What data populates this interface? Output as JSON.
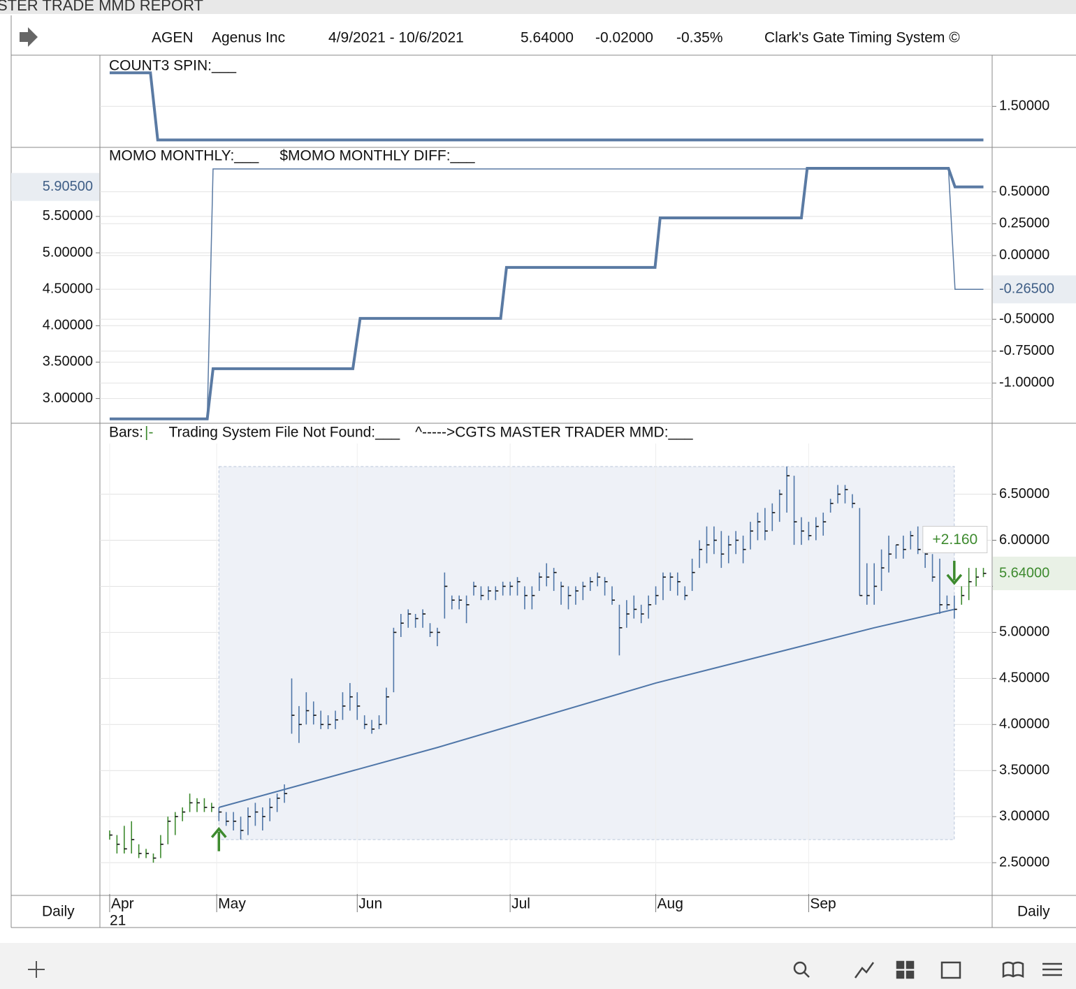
{
  "window_title": "STER TRADE MMD REPORT",
  "header": {
    "symbol": "AGEN",
    "company": "Agenus Inc",
    "date_range": "4/9/2021 - 10/6/2021",
    "last": "5.64000",
    "change": "-0.02000",
    "change_pct": "-0.35%",
    "system": "Clark's Gate Timing System ©"
  },
  "footer": {
    "left_period": "Daily",
    "right_period": "Daily"
  },
  "chart_data": [
    {
      "type": "line",
      "xlim": [
        -1.34,
        121.2
      ],
      "ylim": [
        0.9,
        2.2
      ],
      "yticks": [
        {
          "value": 1.5,
          "label": "1.50000"
        }
      ],
      "series": [
        {
          "name": "COUNT3 SPIN:___",
          "color": "#5a7aa3",
          "x": [
            0,
            5.6,
            6.6,
            120
          ],
          "values": [
            2,
            2,
            1,
            1
          ]
        }
      ]
    },
    {
      "type": "line",
      "xlim": [
        -1.34,
        121.2
      ],
      "ylim": [
        2.67,
        6.17
      ],
      "y2lim": [
        -1.31,
        0.69
      ],
      "yticks": [
        {
          "value": 3,
          "label": "3.00000"
        },
        {
          "value": 3.5,
          "label": "3.50000"
        },
        {
          "value": 4,
          "label": "4.00000"
        },
        {
          "value": 4.5,
          "label": "4.50000"
        },
        {
          "value": 5,
          "label": "5.00000"
        },
        {
          "value": 5.5,
          "label": "5.50000"
        }
      ],
      "y2ticks": [
        {
          "value": 0.5,
          "label": "0.50000"
        },
        {
          "value": 0.25,
          "label": "0.25000"
        },
        {
          "value": 0,
          "label": "0.00000"
        },
        {
          "value": -0.5,
          "label": "-0.50000"
        },
        {
          "value": -0.75,
          "label": "-0.75000"
        },
        {
          "value": -1,
          "label": "-1.00000"
        }
      ],
      "series": [
        {
          "name": "MOMO MONTHLY:___",
          "color": "#5a7aa3",
          "width": 4,
          "last_label": "5.90500",
          "x": [
            0,
            13.4,
            14.2,
            33.4,
            34.4,
            53.7,
            54.5,
            74.9,
            75.6,
            95,
            95.8,
            115.2,
            116.1,
            120
          ],
          "values": [
            2.72,
            2.72,
            3.41,
            3.41,
            4.1,
            4.1,
            4.8,
            4.8,
            5.48,
            5.48,
            6.16,
            6.16,
            5.905,
            5.905
          ]
        },
        {
          "name": "$MOMO MONTHLY DIFF:___",
          "color": "#5a7aa3",
          "width": 1.5,
          "axis": "y2",
          "last_label": "-0.26500",
          "x": [
            0,
            13.4,
            14.2,
            115.2,
            116.1,
            120
          ],
          "values": [
            -1.28,
            -1.28,
            0.68,
            0.68,
            -0.265,
            -0.265
          ]
        }
      ]
    },
    {
      "type": "ohlc",
      "xlim": [
        -1.34,
        121.2
      ],
      "ylim": [
        2.16,
        7.05
      ],
      "labels": [
        "Bars:",
        "|-",
        "Trading System File Not Found:___",
        "^----->CGTS MASTER TRADER MMD:___"
      ],
      "yticks": [
        {
          "value": 2.5,
          "label": "2.50000"
        },
        {
          "value": 3,
          "label": "3.00000"
        },
        {
          "value": 3.5,
          "label": "3.50000"
        },
        {
          "value": 4,
          "label": "4.00000"
        },
        {
          "value": 4.5,
          "label": "4.50000"
        },
        {
          "value": 5,
          "label": "5.00000"
        },
        {
          "value": 5.5,
          "label": "5.50000"
        },
        {
          "value": 6,
          "label": "6.00000"
        },
        {
          "value": 6.5,
          "label": "6.50000"
        }
      ],
      "xticks": [
        {
          "value": 0,
          "label": "Apr"
        },
        {
          "value": 14.7,
          "label": "May"
        },
        {
          "value": 34,
          "label": "Jun"
        },
        {
          "value": 55,
          "label": "Jul"
        },
        {
          "value": 75,
          "label": "Aug"
        },
        {
          "value": 96,
          "label": "Sep"
        }
      ],
      "year_label": "21",
      "color": "#4f76a8",
      "signal_color": "#3d8a2e",
      "last_label": "5.64000",
      "high": [
        2.85,
        2.8,
        2.9,
        2.95,
        2.7,
        2.65,
        2.6,
        2.8,
        3.0,
        3.05,
        3.1,
        3.25,
        3.2,
        3.2,
        3.15,
        3.1,
        3.05,
        3.05,
        3.0,
        3.1,
        3.15,
        3.1,
        3.2,
        3.25,
        3.35,
        4.5,
        4.2,
        4.35,
        4.25,
        4.15,
        4.1,
        4.15,
        4.35,
        4.45,
        4.35,
        4.1,
        4.05,
        4.1,
        4.4,
        5.05,
        5.2,
        5.25,
        5.2,
        5.25,
        5.1,
        5.05,
        5.65,
        5.4,
        5.4,
        5.4,
        5.55,
        5.5,
        5.5,
        5.5,
        5.55,
        5.55,
        5.6,
        5.5,
        5.5,
        5.65,
        5.75,
        5.7,
        5.55,
        5.5,
        5.5,
        5.55,
        5.6,
        5.65,
        5.6,
        5.5,
        5.3,
        5.35,
        5.4,
        5.3,
        5.4,
        5.5,
        5.65,
        5.65,
        5.65,
        5.5,
        5.8,
        6.0,
        6.15,
        6.15,
        6.1,
        6.05,
        6.1,
        6.05,
        6.2,
        6.3,
        6.35,
        6.4,
        6.55,
        6.8,
        6.7,
        6.25,
        6.2,
        6.25,
        6.3,
        6.45,
        6.6,
        6.6,
        6.5,
        6.35,
        5.75,
        5.75,
        5.9,
        6.05,
        5.95,
        6.05,
        6.1,
        6.15,
        5.95,
        5.85,
        5.8,
        5.4,
        5.4,
        5.5,
        5.7,
        5.7,
        5.7
      ],
      "low": [
        2.75,
        2.6,
        2.6,
        2.6,
        2.55,
        2.55,
        2.5,
        2.55,
        2.7,
        2.8,
        2.95,
        3.05,
        3.05,
        3.05,
        3.05,
        2.95,
        2.9,
        2.85,
        2.75,
        2.8,
        2.9,
        2.85,
        2.95,
        3.05,
        3.15,
        3.9,
        3.8,
        4.0,
        4.0,
        3.95,
        3.95,
        3.95,
        4.05,
        4.15,
        4.05,
        3.95,
        3.9,
        3.95,
        4.0,
        4.35,
        4.95,
        5.05,
        5.05,
        5.05,
        4.95,
        4.85,
        5.15,
        5.25,
        5.25,
        5.1,
        5.4,
        5.35,
        5.35,
        5.35,
        5.4,
        5.4,
        5.4,
        5.25,
        5.25,
        5.45,
        5.5,
        5.45,
        5.3,
        5.25,
        5.3,
        5.35,
        5.45,
        5.5,
        5.4,
        5.3,
        4.75,
        5.05,
        5.15,
        5.1,
        5.15,
        5.3,
        5.35,
        5.45,
        5.4,
        5.35,
        5.45,
        5.7,
        5.75,
        5.85,
        5.7,
        5.75,
        5.85,
        5.75,
        5.9,
        6.0,
        6.0,
        6.1,
        6.2,
        6.3,
        5.95,
        5.95,
        6.0,
        6.0,
        6.05,
        6.3,
        6.4,
        6.4,
        6.35,
        5.4,
        5.3,
        5.3,
        5.45,
        5.65,
        5.8,
        5.8,
        5.9,
        5.85,
        5.7,
        5.55,
        5.2,
        5.25,
        5.15,
        5.3,
        5.35,
        5.5,
        5.6
      ],
      "close": [
        2.8,
        2.7,
        2.65,
        2.75,
        2.6,
        2.6,
        2.55,
        2.7,
        2.95,
        3.0,
        3.05,
        3.15,
        3.15,
        3.1,
        3.1,
        3.05,
        2.95,
        2.95,
        2.85,
        3.0,
        3.05,
        3.0,
        3.1,
        3.2,
        3.25,
        4.1,
        4.0,
        4.15,
        4.1,
        4.0,
        4.0,
        4.05,
        4.2,
        4.3,
        4.2,
        4.0,
        3.95,
        4.0,
        4.3,
        5.0,
        5.1,
        5.2,
        5.15,
        5.2,
        5.0,
        5.0,
        5.5,
        5.35,
        5.35,
        5.3,
        5.5,
        5.4,
        5.45,
        5.45,
        5.5,
        5.5,
        5.55,
        5.4,
        5.4,
        5.6,
        5.6,
        5.65,
        5.5,
        5.4,
        5.45,
        5.5,
        5.55,
        5.6,
        5.55,
        5.35,
        5.05,
        5.2,
        5.25,
        5.2,
        5.3,
        5.4,
        5.6,
        5.6,
        5.55,
        5.4,
        5.65,
        5.9,
        5.95,
        6.0,
        5.85,
        5.95,
        6.0,
        5.9,
        6.1,
        6.2,
        6.1,
        6.3,
        6.5,
        6.7,
        6.2,
        6.1,
        6.05,
        6.15,
        6.2,
        6.4,
        6.5,
        6.55,
        6.4,
        5.4,
        5.4,
        5.5,
        5.7,
        5.85,
        5.95,
        5.9,
        6.05,
        5.9,
        5.85,
        5.6,
        5.3,
        5.3,
        5.25,
        5.4,
        5.55,
        5.6,
        5.64
      ],
      "trend": {
        "x": [
          15,
          45,
          75,
          105,
          116
        ],
        "values": [
          3.1,
          3.75,
          4.45,
          5.05,
          5.25
        ]
      },
      "box": {
        "x": [
          15,
          116
        ],
        "y": [
          2.75,
          6.8
        ]
      },
      "annotation": {
        "text": "+2.160",
        "x": 116,
        "y": 6.0
      },
      "entry": {
        "x": 15,
        "y": 2.7
      },
      "exit": {
        "x": 116,
        "y": 5.55
      }
    }
  ]
}
